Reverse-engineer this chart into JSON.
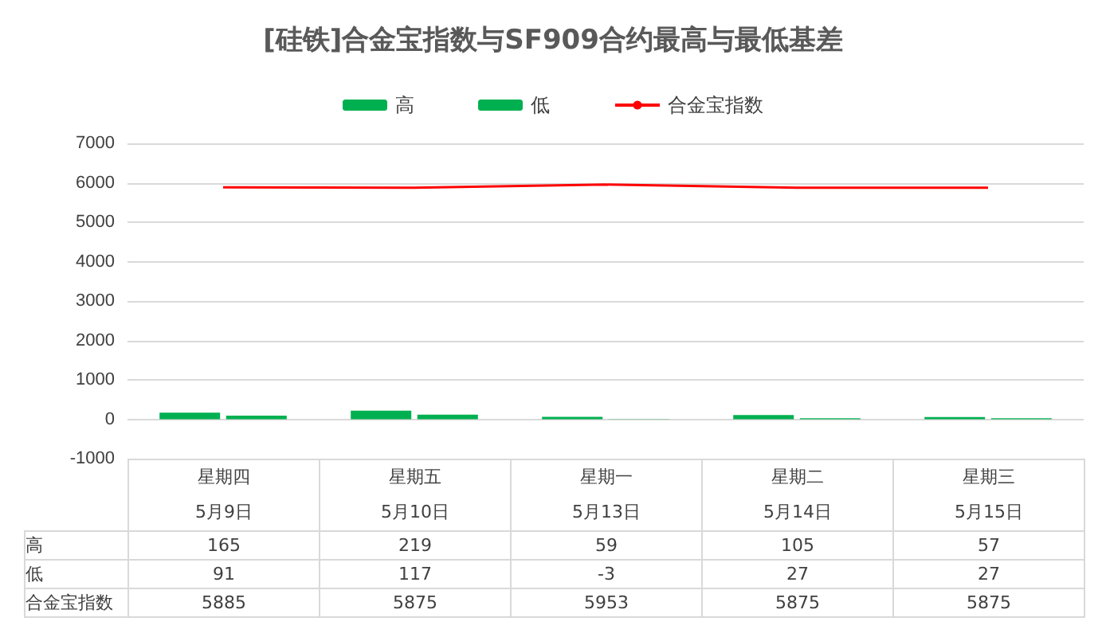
{
  "chart_data": {
    "type": "bar",
    "title": "[硅铁]合金宝指数与SF909合约最高与最低基差",
    "categories": [
      "星期四\n5月9日",
      "星期五\n5月10日",
      "星期一\n5月13日",
      "星期二\n5月14日",
      "星期三\n5月15日"
    ],
    "series": [
      {
        "name": "高",
        "color": "#00b050",
        "values": [
          165,
          219,
          59,
          105,
          57
        ]
      },
      {
        "name": "低",
        "color": "#00b050",
        "values": [
          91,
          117,
          -3,
          27,
          27
        ]
      },
      {
        "name": "合金宝指数",
        "type": "line",
        "color": "#ff0000",
        "values": [
          5885,
          5875,
          5953,
          5875,
          5875
        ]
      }
    ],
    "ylim": [
      -1000,
      7000
    ],
    "yticks": [
      -1000,
      0,
      1000,
      2000,
      3000,
      4000,
      5000,
      6000,
      7000
    ],
    "grid": "y",
    "legend": "top",
    "marker": "none",
    "data_labels": true
  }
}
